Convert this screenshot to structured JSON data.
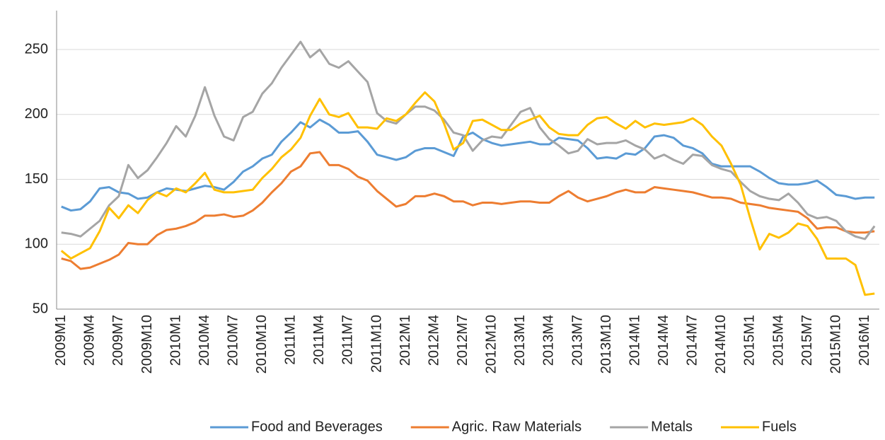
{
  "chart_data": {
    "type": "line",
    "categories": [
      "2009M1",
      null,
      null,
      "2009M4",
      null,
      null,
      "2009M7",
      null,
      null,
      "2009M10",
      null,
      null,
      "2010M1",
      null,
      null,
      "2010M4",
      null,
      null,
      "2010M7",
      null,
      null,
      "2010M10",
      null,
      null,
      "2011M1",
      null,
      null,
      "2011M4",
      null,
      null,
      "2011M7",
      null,
      null,
      "2011M10",
      null,
      null,
      "2012M1",
      null,
      null,
      "2012M4",
      null,
      null,
      "2012M7",
      null,
      null,
      "2012M10",
      null,
      null,
      "2013M1",
      null,
      null,
      "2013M4",
      null,
      null,
      "2013M7",
      null,
      null,
      "2013M10",
      null,
      null,
      "2014M1",
      null,
      null,
      "2014M4",
      null,
      null,
      "2014M7",
      null,
      null,
      "2014M10",
      null,
      null,
      "2015M1",
      null,
      null,
      "2015M4",
      null,
      null,
      "2015M7",
      null,
      null,
      "2015M10",
      null,
      null,
      "2016M1",
      null
    ],
    "series": [
      {
        "name": "Food and Beverages",
        "color": "#5b9bd5",
        "values": [
          129,
          126,
          127,
          133,
          143,
          144,
          140,
          139,
          135,
          136,
          140,
          143,
          142,
          141,
          143,
          145,
          144,
          142,
          148,
          156,
          160,
          166,
          169,
          179,
          186,
          194,
          190,
          196,
          192,
          186,
          186,
          187,
          179,
          169,
          167,
          165,
          167,
          172,
          174,
          174,
          171,
          168,
          183,
          186,
          181,
          178,
          176,
          177,
          178,
          179,
          177,
          177,
          182,
          181,
          180,
          174,
          166,
          167,
          166,
          170,
          169,
          174,
          183,
          184,
          182,
          176,
          174,
          170,
          162,
          160,
          160,
          160,
          160,
          156,
          151,
          147,
          146,
          146,
          147,
          149,
          144,
          138,
          137,
          135,
          136,
          136
        ]
      },
      {
        "name": "Agric. Raw Materials",
        "color": "#ed7d31",
        "values": [
          89,
          87,
          81,
          82,
          85,
          88,
          92,
          101,
          100,
          100,
          107,
          111,
          112,
          114,
          117,
          122,
          122,
          123,
          121,
          122,
          126,
          132,
          140,
          147,
          156,
          160,
          170,
          171,
          161,
          161,
          158,
          152,
          149,
          141,
          135,
          129,
          131,
          137,
          137,
          139,
          137,
          133,
          133,
          130,
          132,
          132,
          131,
          132,
          133,
          133,
          132,
          132,
          137,
          141,
          136,
          133,
          135,
          137,
          140,
          142,
          140,
          140,
          144,
          143,
          142,
          141,
          140,
          138,
          136,
          136,
          135,
          132,
          131,
          130,
          128,
          127,
          126,
          125,
          120,
          112,
          113,
          113,
          110,
          109,
          109,
          110
        ]
      },
      {
        "name": "Metals",
        "color": "#a5a5a5",
        "values": [
          109,
          108,
          106,
          112,
          118,
          130,
          137,
          161,
          151,
          157,
          167,
          178,
          191,
          183,
          199,
          221,
          199,
          183,
          180,
          198,
          202,
          216,
          224,
          236,
          246,
          256,
          244,
          250,
          239,
          236,
          241,
          233,
          225,
          201,
          195,
          193,
          200,
          206,
          206,
          203,
          196,
          186,
          184,
          172,
          180,
          183,
          182,
          192,
          202,
          205,
          190,
          181,
          176,
          170,
          172,
          181,
          177,
          178,
          178,
          180,
          176,
          173,
          166,
          169,
          165,
          162,
          169,
          168,
          161,
          158,
          156,
          148,
          141,
          137,
          135,
          134,
          139,
          132,
          123,
          120,
          121,
          118,
          110,
          106,
          104,
          114
        ]
      },
      {
        "name": "Fuels",
        "color": "#ffc000",
        "values": [
          95,
          89,
          93,
          97,
          110,
          128,
          120,
          130,
          124,
          134,
          140,
          137,
          143,
          140,
          147,
          155,
          142,
          140,
          140,
          141,
          142,
          151,
          158,
          167,
          173,
          182,
          199,
          212,
          200,
          198,
          201,
          190,
          190,
          189,
          197,
          195,
          200,
          209,
          217,
          210,
          193,
          173,
          178,
          195,
          196,
          192,
          188,
          188,
          193,
          196,
          199,
          190,
          185,
          184,
          184,
          192,
          197,
          198,
          193,
          189,
          195,
          190,
          193,
          192,
          193,
          194,
          197,
          192,
          183,
          176,
          162,
          146,
          120,
          96,
          108,
          105,
          109,
          116,
          114,
          104,
          89,
          89,
          89,
          84,
          61,
          62
        ]
      }
    ],
    "ylim": [
      50,
      280
    ],
    "yticks": [
      50,
      100,
      150,
      200,
      250
    ],
    "grid": true,
    "legend": "bottom"
  }
}
